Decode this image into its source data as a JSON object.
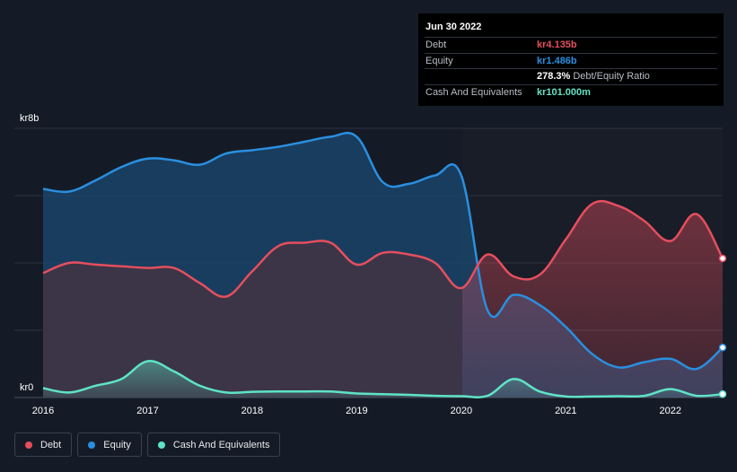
{
  "chart_data": {
    "type": "area",
    "title": "",
    "currency_unit": "kr",
    "y_axis": {
      "min": 0,
      "max": 8,
      "top_label": "kr8b",
      "bottom_label": "kr0"
    },
    "x_axis": {
      "min": 2016,
      "max": 2022.5,
      "ticks": [
        "2016",
        "2017",
        "2018",
        "2019",
        "2020",
        "2021",
        "2022"
      ]
    },
    "grid": true,
    "series": [
      {
        "name": "Equity",
        "color": "#2a8fe0",
        "points": [
          [
            2016.0,
            6.2
          ],
          [
            2016.25,
            6.12
          ],
          [
            2016.5,
            6.45
          ],
          [
            2016.75,
            6.85
          ],
          [
            2017.0,
            7.1
          ],
          [
            2017.25,
            7.05
          ],
          [
            2017.5,
            6.92
          ],
          [
            2017.75,
            7.25
          ],
          [
            2018.0,
            7.35
          ],
          [
            2018.25,
            7.45
          ],
          [
            2018.5,
            7.6
          ],
          [
            2018.75,
            7.75
          ],
          [
            2019.0,
            7.75
          ],
          [
            2019.25,
            6.4
          ],
          [
            2019.5,
            6.35
          ],
          [
            2019.75,
            6.6
          ],
          [
            2020.0,
            6.6
          ],
          [
            2020.25,
            2.6
          ],
          [
            2020.5,
            3.05
          ],
          [
            2020.75,
            2.75
          ],
          [
            2021.0,
            2.1
          ],
          [
            2021.25,
            1.3
          ],
          [
            2021.5,
            0.9
          ],
          [
            2021.75,
            1.05
          ],
          [
            2022.0,
            1.15
          ],
          [
            2022.25,
            0.85
          ],
          [
            2022.5,
            1.486
          ]
        ]
      },
      {
        "name": "Debt",
        "color": "#e64e5e",
        "points": [
          [
            2016.0,
            3.7
          ],
          [
            2016.25,
            4.0
          ],
          [
            2016.5,
            3.95
          ],
          [
            2016.75,
            3.9
          ],
          [
            2017.0,
            3.85
          ],
          [
            2017.25,
            3.85
          ],
          [
            2017.5,
            3.4
          ],
          [
            2017.75,
            3.0
          ],
          [
            2018.0,
            3.75
          ],
          [
            2018.25,
            4.5
          ],
          [
            2018.5,
            4.6
          ],
          [
            2018.75,
            4.6
          ],
          [
            2019.0,
            3.95
          ],
          [
            2019.25,
            4.3
          ],
          [
            2019.5,
            4.25
          ],
          [
            2019.75,
            4.0
          ],
          [
            2020.0,
            3.25
          ],
          [
            2020.25,
            4.25
          ],
          [
            2020.5,
            3.6
          ],
          [
            2020.75,
            3.65
          ],
          [
            2021.0,
            4.7
          ],
          [
            2021.25,
            5.75
          ],
          [
            2021.5,
            5.7
          ],
          [
            2021.75,
            5.25
          ],
          [
            2022.0,
            4.65
          ],
          [
            2022.25,
            5.45
          ],
          [
            2022.5,
            4.135
          ]
        ]
      },
      {
        "name": "Cash And Equivalents",
        "color": "#5fe3c6",
        "points": [
          [
            2016.0,
            0.28
          ],
          [
            2016.25,
            0.15
          ],
          [
            2016.5,
            0.35
          ],
          [
            2016.75,
            0.55
          ],
          [
            2017.0,
            1.08
          ],
          [
            2017.25,
            0.78
          ],
          [
            2017.5,
            0.35
          ],
          [
            2017.75,
            0.15
          ],
          [
            2018.0,
            0.17
          ],
          [
            2018.25,
            0.18
          ],
          [
            2018.5,
            0.18
          ],
          [
            2018.75,
            0.18
          ],
          [
            2019.0,
            0.12
          ],
          [
            2019.25,
            0.1
          ],
          [
            2019.5,
            0.08
          ],
          [
            2019.75,
            0.05
          ],
          [
            2020.0,
            0.04
          ],
          [
            2020.25,
            0.05
          ],
          [
            2020.5,
            0.55
          ],
          [
            2020.75,
            0.18
          ],
          [
            2021.0,
            0.03
          ],
          [
            2021.25,
            0.03
          ],
          [
            2021.5,
            0.04
          ],
          [
            2021.75,
            0.05
          ],
          [
            2022.0,
            0.25
          ],
          [
            2022.25,
            0.05
          ],
          [
            2022.5,
            0.101
          ]
        ]
      }
    ],
    "legend": [
      "Debt",
      "Equity",
      "Cash And Equivalents"
    ],
    "legend_position": "bottom-left"
  },
  "tooltip": {
    "date": "Jun 30 2022",
    "rows": [
      {
        "label": "Debt",
        "value": "kr4.135b",
        "color": "#e64e5e",
        "suffix": ""
      },
      {
        "label": "Equity",
        "value": "kr1.486b",
        "color": "#2a8fe0",
        "suffix": ""
      },
      {
        "label": "",
        "value": "278.3%",
        "color": "#ffffff",
        "suffix": "Debt/Equity Ratio"
      },
      {
        "label": "Cash And Equivalents",
        "value": "kr101.000m",
        "color": "#5fe3c6",
        "suffix": ""
      }
    ]
  },
  "legend": {
    "items": [
      {
        "label": "Debt",
        "color": "#e64e5e"
      },
      {
        "label": "Equity",
        "color": "#2a8fe0"
      },
      {
        "label": "Cash And Equivalents",
        "color": "#5fe3c6"
      }
    ]
  }
}
